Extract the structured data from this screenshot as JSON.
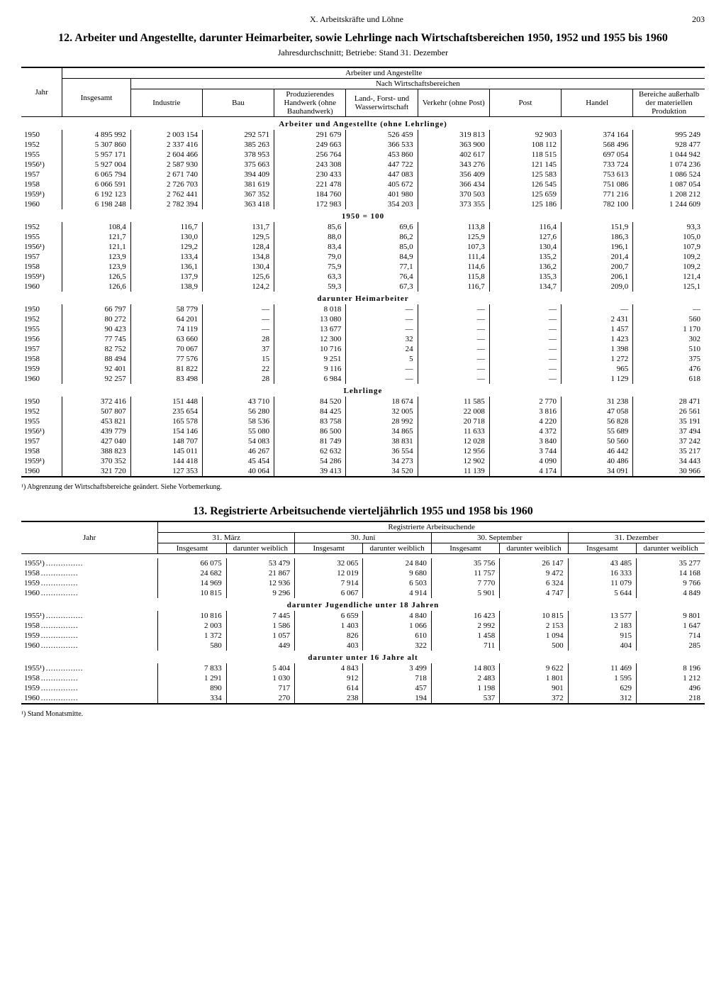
{
  "page": {
    "chapter": "X. Arbeitskräfte und Löhne",
    "number": "203"
  },
  "table12": {
    "title": "12. Arbeiter und Angestellte, darunter Heimarbeiter, sowie Lehrlinge nach Wirtschaftsbereichen 1950, 1952 und 1955 bis 1960",
    "subtitle": "Jahresdurchschnitt; Betriebe: Stand 31. Dezember",
    "head": {
      "jahr": "Jahr",
      "arbang": "Arbeiter und Angestellte",
      "nachwb": "Nach Wirtschaftsbereichen",
      "insgesamt": "Insgesamt",
      "industrie": "Industrie",
      "bau": "Bau",
      "produzhw": "Produzierendes Handwerk (ohne Bauhandwerk)",
      "landforst": "Land-, Forst- und Wasserwirtschaft",
      "verkehr": "Verkehr (ohne Post)",
      "post": "Post",
      "handel": "Handel",
      "bereiche": "Bereiche außerhalb der materiellen Produktion"
    },
    "sections": {
      "s1": "Arbeiter und Angestellte (ohne Lehrlinge)",
      "s2": "1950 = 100",
      "s3": "darunter Heimarbeiter",
      "s4": "Lehrlinge"
    },
    "s1_rows": [
      {
        "y": "1950",
        "v": [
          "4 895 992",
          "2 003 154",
          "292 571",
          "291 679",
          "526 459",
          "319 813",
          "92 903",
          "374 164",
          "995 249"
        ]
      },
      {
        "y": "1952",
        "v": [
          "5 307 860",
          "2 337 416",
          "385 263",
          "249 663",
          "366 533",
          "363 900",
          "108 112",
          "568 496",
          "928 477"
        ]
      },
      {
        "y": "1955",
        "v": [
          "5 957 171",
          "2 604 466",
          "378 953",
          "256 764",
          "453 860",
          "402 617",
          "118 515",
          "697 054",
          "1 044 942"
        ]
      },
      {
        "y": "1956¹)",
        "v": [
          "5 927 004",
          "2 587 930",
          "375 663",
          "243 308",
          "447 722",
          "343 276",
          "121 145",
          "733 724",
          "1 074 236"
        ]
      },
      {
        "y": "1957",
        "v": [
          "6 065 794",
          "2 671 740",
          "394 409",
          "230 433",
          "447 083",
          "356 409",
          "125 583",
          "753 613",
          "1 086 524"
        ]
      },
      {
        "y": "1958",
        "v": [
          "6 066 591",
          "2 726 703",
          "381 619",
          "221 478",
          "405 672",
          "366 434",
          "126 545",
          "751 086",
          "1 087 054"
        ]
      },
      {
        "y": "1959¹)",
        "v": [
          "6 192 123",
          "2 762 441",
          "367 352",
          "184 760",
          "401 980",
          "370 503",
          "125 659",
          "771 216",
          "1 208 212"
        ]
      },
      {
        "y": "1960",
        "v": [
          "6 198 248",
          "2 782 394",
          "363 418",
          "172 983",
          "354 203",
          "373 355",
          "125 186",
          "782 100",
          "1 244 609"
        ]
      }
    ],
    "s2_rows": [
      {
        "y": "1952",
        "v": [
          "108,4",
          "116,7",
          "131,7",
          "85,6",
          "69,6",
          "113,8",
          "116,4",
          "151,9",
          "93,3"
        ]
      },
      {
        "y": "1955",
        "v": [
          "121,7",
          "130,0",
          "129,5",
          "88,0",
          "86,2",
          "125,9",
          "127,6",
          "186,3",
          "105,0"
        ]
      },
      {
        "y": "1956¹)",
        "v": [
          "121,1",
          "129,2",
          "128,4",
          "83,4",
          "85,0",
          "107,3",
          "130,4",
          "196,1",
          "107,9"
        ]
      },
      {
        "y": "1957",
        "v": [
          "123,9",
          "133,4",
          "134,8",
          "79,0",
          "84,9",
          "111,4",
          "135,2",
          "201,4",
          "109,2"
        ]
      },
      {
        "y": "1958",
        "v": [
          "123,9",
          "136,1",
          "130,4",
          "75,9",
          "77,1",
          "114,6",
          "136,2",
          "200,7",
          "109,2"
        ]
      },
      {
        "y": "1959¹)",
        "v": [
          "126,5",
          "137,9",
          "125,6",
          "63,3",
          "76,4",
          "115,8",
          "135,3",
          "206,1",
          "121,4"
        ]
      },
      {
        "y": "1960",
        "v": [
          "126,6",
          "138,9",
          "124,2",
          "59,3",
          "67,3",
          "116,7",
          "134,7",
          "209,0",
          "125,1"
        ]
      }
    ],
    "s3_rows": [
      {
        "y": "1950",
        "v": [
          "66 797",
          "58 779",
          "—",
          "8 018",
          "—",
          "—",
          "—",
          "—",
          "—"
        ]
      },
      {
        "y": "1952",
        "v": [
          "80 272",
          "64 201",
          "—",
          "13 080",
          "—",
          "—",
          "—",
          "2 431",
          "560"
        ]
      },
      {
        "y": "1955",
        "v": [
          "90 423",
          "74 119",
          "—",
          "13 677",
          "—",
          "—",
          "—",
          "1 457",
          "1 170"
        ]
      },
      {
        "y": "1956",
        "v": [
          "77 745",
          "63 660",
          "28",
          "12 300",
          "32",
          "—",
          "—",
          "1 423",
          "302"
        ]
      },
      {
        "y": "1957",
        "v": [
          "82 752",
          "70 067",
          "37",
          "10 716",
          "24",
          "—",
          "—",
          "1 398",
          "510"
        ]
      },
      {
        "y": "1958",
        "v": [
          "88 494",
          "77 576",
          "15",
          "9 251",
          "5",
          "—",
          "—",
          "1 272",
          "375"
        ]
      },
      {
        "y": "1959",
        "v": [
          "92 401",
          "81 822",
          "22",
          "9 116",
          "—",
          "—",
          "—",
          "965",
          "476"
        ]
      },
      {
        "y": "1960",
        "v": [
          "92 257",
          "83 498",
          "28",
          "6 984",
          "—",
          "—",
          "—",
          "1 129",
          "618"
        ]
      }
    ],
    "s4_rows": [
      {
        "y": "1950",
        "v": [
          "372 416",
          "151 448",
          "43 710",
          "84 520",
          "18 674",
          "11 585",
          "2 770",
          "31 238",
          "28 471"
        ]
      },
      {
        "y": "1952",
        "v": [
          "507 807",
          "235 654",
          "56 280",
          "84 425",
          "32 005",
          "22 008",
          "3 816",
          "47 058",
          "26 561"
        ]
      },
      {
        "y": "1955",
        "v": [
          "453 821",
          "165 578",
          "58 536",
          "83 758",
          "28 992",
          "20 718",
          "4 220",
          "56 828",
          "35 191"
        ]
      },
      {
        "y": "1956¹)",
        "v": [
          "439 779",
          "154 146",
          "55 080",
          "86 500",
          "34 865",
          "11 633",
          "4 372",
          "55 689",
          "37 494"
        ]
      },
      {
        "y": "1957",
        "v": [
          "427 040",
          "148 707",
          "54 083",
          "81 749",
          "38 831",
          "12 028",
          "3 840",
          "50 560",
          "37 242"
        ]
      },
      {
        "y": "1958",
        "v": [
          "388 823",
          "145 011",
          "46 267",
          "62 632",
          "36 554",
          "12 956",
          "3 744",
          "46 442",
          "35 217"
        ]
      },
      {
        "y": "1959¹)",
        "v": [
          "370 352",
          "144 418",
          "45 454",
          "54 286",
          "34 273",
          "12 902",
          "4 090",
          "40 486",
          "34 443"
        ]
      },
      {
        "y": "1960",
        "v": [
          "321 720",
          "127 353",
          "40 064",
          "39 413",
          "34 520",
          "11 139",
          "4 174",
          "34 091",
          "30 966"
        ]
      }
    ],
    "footnote": "¹) Abgrenzung der Wirtschaftsbereiche geändert. Siehe Vorbemerkung."
  },
  "table13": {
    "title": "13. Registrierte Arbeitsuchende vierteljährlich 1955 und 1958 bis 1960",
    "head": {
      "jahr": "Jahr",
      "reg": "Registrierte Arbeitsuchende",
      "marz": "31. März",
      "juni": "30. Juni",
      "sept": "30. September",
      "dez": "31. Dezember",
      "insgesamt": "Insgesamt",
      "weiblich": "darunter weiblich"
    },
    "sections": {
      "s2": "darunter Jugendliche unter 18 Jahren",
      "s3": "darunter unter 16 Jahre alt"
    },
    "s1_rows": [
      {
        "y": "1955¹)",
        "v": [
          "66 075",
          "53 479",
          "32 065",
          "24 840",
          "35 756",
          "26 147",
          "43 485",
          "35 277"
        ]
      },
      {
        "y": "1958",
        "v": [
          "24 682",
          "21 867",
          "12 019",
          "9 680",
          "11 757",
          "9 472",
          "16 333",
          "14 168"
        ]
      },
      {
        "y": "1959",
        "v": [
          "14 969",
          "12 936",
          "7 914",
          "6 503",
          "7 770",
          "6 324",
          "11 079",
          "9 766"
        ]
      },
      {
        "y": "1960",
        "v": [
          "10 815",
          "9 296",
          "6 067",
          "4 914",
          "5 901",
          "4 747",
          "5 644",
          "4 849"
        ]
      }
    ],
    "s2_rows": [
      {
        "y": "1955¹)",
        "v": [
          "10 816",
          "7 445",
          "6 659",
          "4 840",
          "16 423",
          "10 815",
          "13 577",
          "9 801"
        ]
      },
      {
        "y": "1958",
        "v": [
          "2 003",
          "1 586",
          "1 403",
          "1 066",
          "2 992",
          "2 153",
          "2 183",
          "1 647"
        ]
      },
      {
        "y": "1959",
        "v": [
          "1 372",
          "1 057",
          "826",
          "610",
          "1 458",
          "1 094",
          "915",
          "714"
        ]
      },
      {
        "y": "1960",
        "v": [
          "580",
          "449",
          "403",
          "322",
          "711",
          "500",
          "404",
          "285"
        ]
      }
    ],
    "s3_rows": [
      {
        "y": "1955¹)",
        "v": [
          "7 833",
          "5 404",
          "4 843",
          "3 499",
          "14 803",
          "9 622",
          "11 469",
          "8 196"
        ]
      },
      {
        "y": "1958",
        "v": [
          "1 291",
          "1 030",
          "912",
          "718",
          "2 483",
          "1 801",
          "1 595",
          "1 212"
        ]
      },
      {
        "y": "1959",
        "v": [
          "890",
          "717",
          "614",
          "457",
          "1 198",
          "901",
          "629",
          "496"
        ]
      },
      {
        "y": "1960",
        "v": [
          "334",
          "270",
          "238",
          "194",
          "537",
          "372",
          "312",
          "218"
        ]
      }
    ],
    "footnote": "¹) Stand Monatsmitte."
  }
}
